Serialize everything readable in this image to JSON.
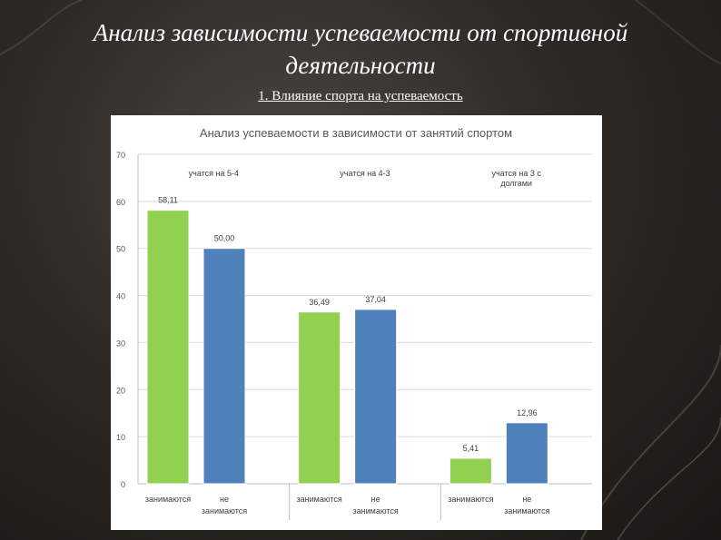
{
  "slide": {
    "title_line1": "Анализ зависимости успеваемости от спортивной",
    "title_line2": "деятельности",
    "subtitle": "1. Влияние спорта на успеваемость"
  },
  "colors": {
    "background": "#2e2a26",
    "green": "#92d050",
    "blue": "#4f81bd"
  },
  "chart_data": {
    "type": "bar",
    "title": "Анализ успеваемости в зависимости от занятий спортом",
    "xlabel": "",
    "ylabel": "",
    "ylim": [
      0,
      70
    ],
    "yticks": [
      0,
      10,
      20,
      30,
      40,
      50,
      60,
      70
    ],
    "grid": true,
    "groups": [
      {
        "label": "учатся на 5-4",
        "bars": [
          {
            "label": "занимаются",
            "value": 58.11,
            "value_label": "58,11",
            "color": "#92d050"
          },
          {
            "label": "не занимаются",
            "value": 50.0,
            "value_label": "50,00",
            "color": "#4f81bd"
          }
        ]
      },
      {
        "label": "учатся на 4-3",
        "bars": [
          {
            "label": "занимаются",
            "value": 36.49,
            "value_label": "36,49",
            "color": "#92d050"
          },
          {
            "label": "не занимаются",
            "value": 37.04,
            "value_label": "37,04",
            "color": "#4f81bd"
          }
        ]
      },
      {
        "label": "учатся на 3 с долгами",
        "bars": [
          {
            "label": "занимаются",
            "value": 5.41,
            "value_label": "5,41",
            "color": "#92d050"
          },
          {
            "label": "не занимаются",
            "value": 12.96,
            "value_label": "12,96",
            "color": "#4f81bd"
          }
        ]
      }
    ]
  }
}
